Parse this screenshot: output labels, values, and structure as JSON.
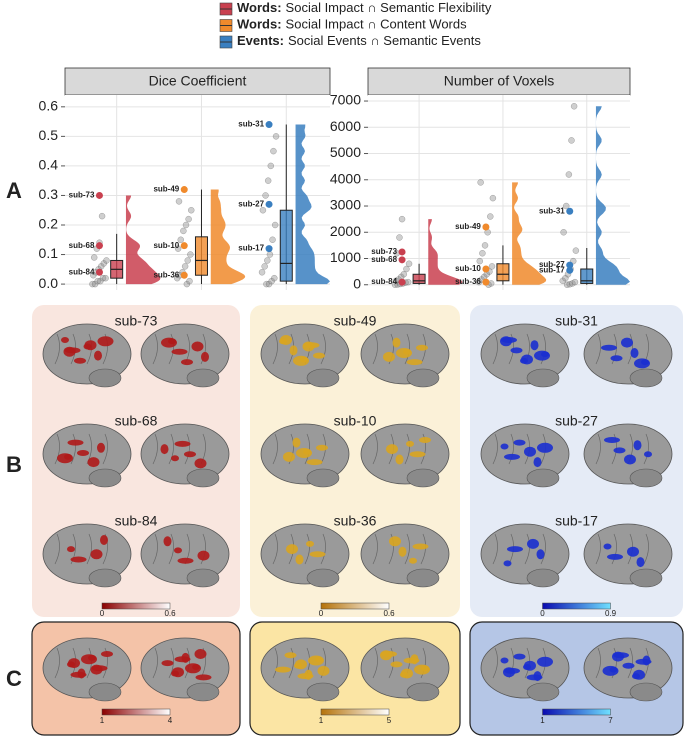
{
  "legend": [
    {
      "bold": "Words:",
      "text": "Social Impact ∩ Semantic Flexibility",
      "color": "#c9404f"
    },
    {
      "bold": "Words:",
      "text": "Social Impact ∩ Content Words",
      "color": "#f08a2c"
    },
    {
      "bold": "Events:",
      "text": "Social Events ∩ Semantic Events",
      "color": "#3a7fc0"
    }
  ],
  "panel_labels": [
    "A",
    "B",
    "C"
  ],
  "chart_data": [
    {
      "type": "raincloud",
      "title": "Dice Coefficient",
      "ylim": [
        -0.02,
        0.64
      ],
      "yticks": [
        {
          "value": 0,
          "label": "0.0"
        },
        0.1,
        0.2,
        0.3,
        0.4,
        0.5,
        0.6
      ],
      "grid": true,
      "series": [
        {
          "color": "#c9404f",
          "box": {
            "min": 0,
            "q1": 0.02,
            "median": 0.05,
            "q3": 0.08,
            "max": 0.17
          },
          "points": [
            0.0,
            0.0,
            0.01,
            0.01,
            0.02,
            0.02,
            0.03,
            0.04,
            0.05,
            0.06,
            0.07,
            0.08,
            0.09,
            0.12,
            0.14,
            0.23
          ],
          "labeled": [
            {
              "label": "sub-73",
              "value": 0.3
            },
            {
              "label": "sub-68",
              "value": 0.13
            },
            {
              "label": "sub-84",
              "value": 0.04
            }
          ]
        },
        {
          "color": "#f08a2c",
          "box": {
            "min": 0,
            "q1": 0.03,
            "median": 0.08,
            "q3": 0.16,
            "max": 0.32
          },
          "points": [
            0.0,
            0.01,
            0.02,
            0.03,
            0.04,
            0.06,
            0.08,
            0.1,
            0.12,
            0.15,
            0.18,
            0.2,
            0.22,
            0.25,
            0.28
          ],
          "labeled": [
            {
              "label": "sub-49",
              "value": 0.32
            },
            {
              "label": "sub-10",
              "value": 0.13
            },
            {
              "label": "sub-36",
              "value": 0.03
            }
          ]
        },
        {
          "color": "#3a7fc0",
          "box": {
            "min": 0,
            "q1": 0.01,
            "median": 0.07,
            "q3": 0.25,
            "max": 0.54
          },
          "points": [
            0.0,
            0.0,
            0.01,
            0.02,
            0.04,
            0.06,
            0.08,
            0.1,
            0.15,
            0.2,
            0.25,
            0.3,
            0.35,
            0.4,
            0.45,
            0.5
          ],
          "labeled": [
            {
              "label": "sub-31",
              "value": 0.54
            },
            {
              "label": "sub-27",
              "value": 0.27
            },
            {
              "label": "sub-17",
              "value": 0.12
            }
          ]
        }
      ]
    },
    {
      "type": "raincloud",
      "title": "Number of Voxels",
      "ylim": [
        -200,
        7230
      ],
      "yticks": [
        0,
        1000,
        2000,
        3000,
        4000,
        5000,
        6000,
        7000
      ],
      "grid": true,
      "series": [
        {
          "color": "#c9404f",
          "box": {
            "min": 0,
            "q1": 50,
            "median": 150,
            "q3": 400,
            "max": 800
          },
          "points": [
            0,
            10,
            30,
            50,
            80,
            100,
            150,
            200,
            300,
            400,
            600,
            800,
            1200,
            1800,
            2500
          ],
          "labeled": [
            {
              "label": "sub-73",
              "value": 1250
            },
            {
              "label": "sub-68",
              "value": 950
            },
            {
              "label": "sub-84",
              "value": 100
            }
          ]
        },
        {
          "color": "#f08a2c",
          "box": {
            "min": 0,
            "q1": 150,
            "median": 400,
            "q3": 800,
            "max": 1500
          },
          "points": [
            0,
            50,
            100,
            200,
            300,
            400,
            500,
            700,
            900,
            1200,
            1500,
            2000,
            2600,
            3300,
            3900
          ],
          "labeled": [
            {
              "label": "sub-49",
              "value": 2200
            },
            {
              "label": "sub-10",
              "value": 600
            },
            {
              "label": "sub-36",
              "value": 100
            }
          ]
        },
        {
          "color": "#3a7fc0",
          "box": {
            "min": 0,
            "q1": 50,
            "median": 150,
            "q3": 600,
            "max": 1400
          },
          "points": [
            0,
            20,
            50,
            100,
            150,
            250,
            400,
            600,
            900,
            1300,
            2000,
            3000,
            4200,
            5500,
            6800
          ],
          "labeled": [
            {
              "label": "sub-31",
              "value": 2800
            },
            {
              "label": "sub-27",
              "value": 750
            },
            {
              "label": "sub-17",
              "value": 550
            }
          ]
        }
      ]
    }
  ],
  "brain_panels": [
    {
      "subjects": [
        "sub-73",
        "sub-68",
        "sub-84"
      ],
      "colorbar": [
        "0",
        "0.6"
      ],
      "group_colorbar": [
        "1",
        "4"
      ]
    },
    {
      "subjects": [
        "sub-49",
        "sub-10",
        "sub-36"
      ],
      "colorbar": [
        "0",
        "0.6"
      ],
      "group_colorbar": [
        "1",
        "5"
      ]
    },
    {
      "subjects": [
        "sub-31",
        "sub-27",
        "sub-17"
      ],
      "colorbar": [
        "0",
        "0.9"
      ],
      "group_colorbar": [
        "1",
        "7"
      ]
    }
  ]
}
